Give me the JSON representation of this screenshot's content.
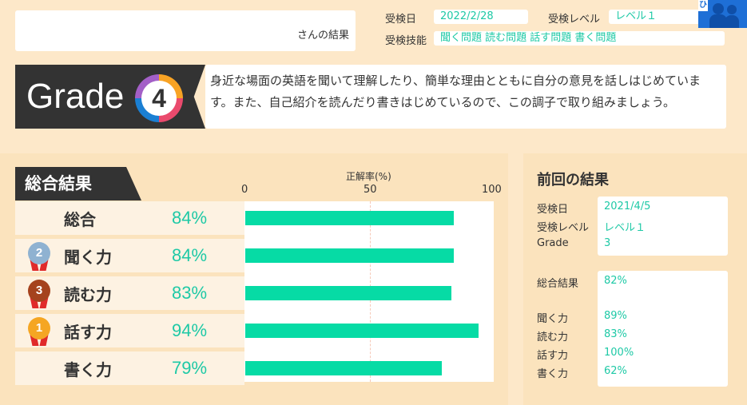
{
  "header": {
    "name_suffix": "さんの結果",
    "exam_date_label": "受検日",
    "exam_date": "2022/2/28",
    "exam_level_label": "受検レベル",
    "exam_level": "レベル１",
    "skills_label": "受検技能",
    "skills": "聞く問題 読む問題 話す問題 書く問題",
    "corner_tag": "ひ"
  },
  "grade": {
    "word": "Grade",
    "number": "4",
    "comment": "身近な場面の英語を聞いて理解したり、簡単な理由とともに自分の意見を話しはじめています。また、自己紹介を読んだり書きはじめているので、この調子で取り組みましょう。"
  },
  "overall": {
    "tab_label": "総合結果",
    "axis_title": "正解率(%)",
    "ticks": [
      "0",
      "50",
      "100"
    ],
    "rows": [
      {
        "name": "総合",
        "pct_label": "84%",
        "medal": ""
      },
      {
        "name": "聞く力",
        "pct_label": "84%",
        "medal": "2"
      },
      {
        "name": "読む力",
        "pct_label": "83%",
        "medal": "3"
      },
      {
        "name": "話す力",
        "pct_label": "94%",
        "medal": "1"
      },
      {
        "name": "書く力",
        "pct_label": "79%",
        "medal": ""
      }
    ]
  },
  "chart_data": {
    "type": "bar",
    "orientation": "horizontal",
    "categories": [
      "総合",
      "聞く力",
      "読む力",
      "話す力",
      "書く力"
    ],
    "values": [
      84,
      84,
      83,
      94,
      79
    ],
    "xlabel": "正解率(%)",
    "xlim": [
      0,
      100
    ],
    "grid": true,
    "color": "#06dba5"
  },
  "previous": {
    "title": "前回の結果",
    "date_label": "受検日",
    "date": "2021/4/5",
    "level_label": "受検レベル",
    "level": "レベル１",
    "grade_label": "Grade",
    "grade": "3",
    "overall_label": "総合結果",
    "overall": "82%",
    "listening_label": "聞く力",
    "listening": "89%",
    "reading_label": "読む力",
    "reading": "83%",
    "speaking_label": "話す力",
    "speaking": "100%",
    "writing_label": "書く力",
    "writing": "62%"
  },
  "colors": {
    "accent": "#1ec9a6",
    "bar": "#06dba5",
    "background": "#fde8c9",
    "dark": "#333333",
    "medal_gold": "#f5a623",
    "medal_silver": "#8fb2d1",
    "medal_bronze": "#a5421d"
  }
}
